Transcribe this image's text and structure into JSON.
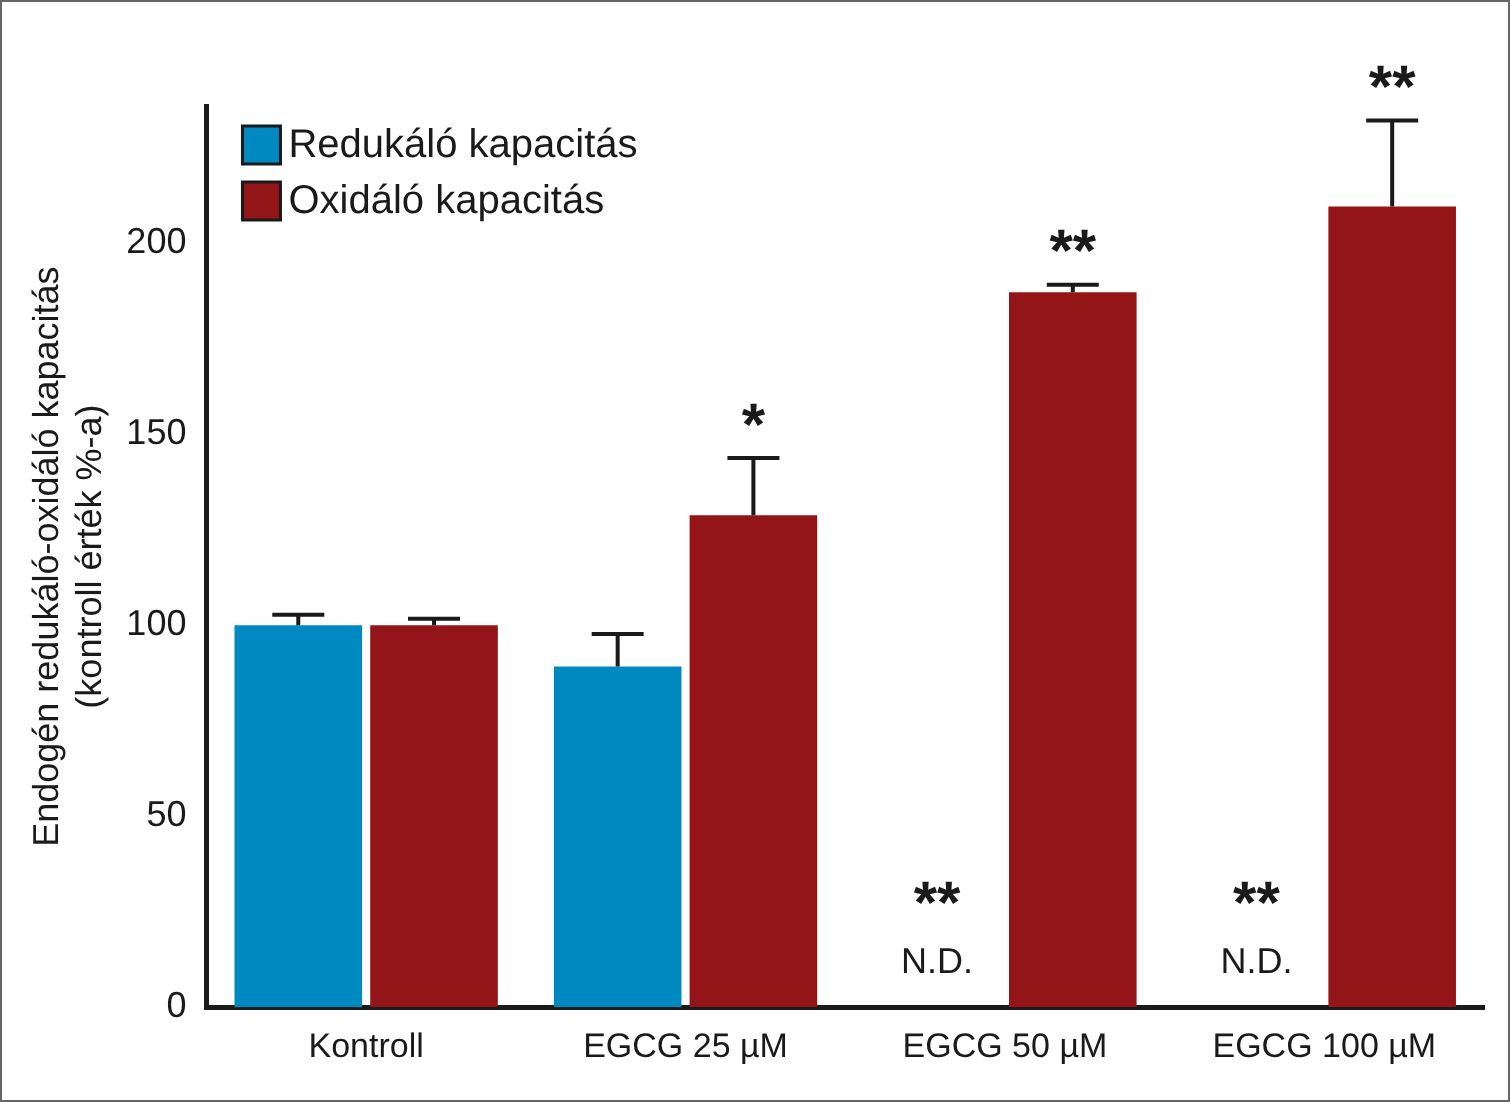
{
  "chart_data": {
    "type": "bar",
    "ylabel": "Endogén redukáló-oxidáló kapacitás\n(kontroll érték %-a)",
    "categories": [
      "Kontroll",
      "EGCG 25 µM",
      "EGCG 50 µM",
      "EGCG 100 µM"
    ],
    "series": [
      {
        "name": "Redukáló kapacitás",
        "color": "#0088c0",
        "values": [
          100,
          89.2,
          null,
          null
        ],
        "errors": [
          2.8,
          8.5,
          null,
          null
        ],
        "value_labels": [
          null,
          null,
          "N.D.",
          "N.D."
        ]
      },
      {
        "name": "Oxidáló kapacitás",
        "color": "#931518",
        "values": [
          100,
          128.8,
          187.2,
          209.7
        ],
        "errors": [
          1.7,
          15,
          2,
          22.5
        ]
      }
    ],
    "ylim": [
      0,
      236
    ],
    "yticks": [
      0,
      50,
      100,
      150,
      200
    ],
    "legend": "top left",
    "grid": false,
    "annotations": [
      {
        "text": "*",
        "x": "EGCG 25 µM",
        "y": 128.8
      },
      {
        "text": "**",
        "x": "EGCG 50 µM",
        "y": 187.2
      },
      {
        "text": "**",
        "x": "EGCG 100 µM",
        "y": 209.7
      },
      {
        "text": "**",
        "x": "EGCG 50 µM",
        "y": 30
      },
      {
        "text": "**",
        "x": "EGCG 100 µM",
        "y": 30
      }
    ]
  }
}
